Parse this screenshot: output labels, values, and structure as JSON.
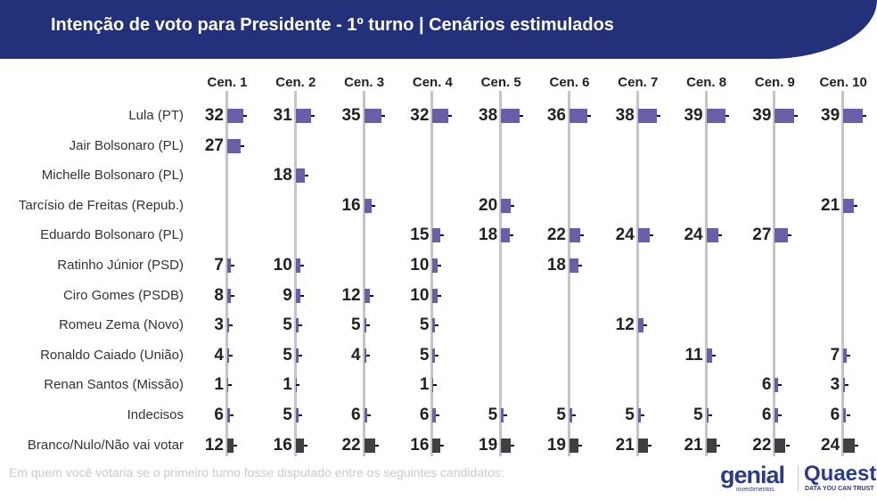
{
  "header": {
    "title": "Intenção de voto para Presidente - 1º turno | Cenários estimulados"
  },
  "footer": {
    "note": "Em quem você votaria se o primeiro turno fosse disputado entre os seguintes candidatos:"
  },
  "logos": {
    "genial": "genial",
    "genial_sub": "investimentos",
    "quaest": "Quaest",
    "quaest_sub": "DATA YOU CAN TRUST"
  },
  "colors": {
    "candidate": "#6b5ea8",
    "blank": "#3f3f44",
    "header": "#23307a"
  },
  "chart_data": {
    "type": "bar",
    "title": "Intenção de voto para Presidente - 1º turno | Cenários estimulados",
    "categories": [
      "Cen. 1",
      "Cen. 2",
      "Cen. 3",
      "Cen. 4",
      "Cen. 5",
      "Cen. 6",
      "Cen. 7",
      "Cen. 8",
      "Cen. 9",
      "Cen. 10"
    ],
    "series": [
      {
        "name": "Lula (PT)",
        "values": [
          32,
          31,
          35,
          32,
          38,
          36,
          38,
          39,
          39,
          39
        ]
      },
      {
        "name": "Jair Bolsonaro (PL)",
        "values": [
          27,
          null,
          null,
          null,
          null,
          null,
          null,
          null,
          null,
          null
        ]
      },
      {
        "name": "Michelle Bolsonaro (PL)",
        "values": [
          null,
          18,
          null,
          null,
          null,
          null,
          null,
          null,
          null,
          null
        ]
      },
      {
        "name": "Tarcísio de Freitas (Repub.)",
        "values": [
          null,
          null,
          16,
          null,
          20,
          null,
          null,
          null,
          null,
          21
        ]
      },
      {
        "name": "Eduardo Bolsonaro (PL)",
        "values": [
          null,
          null,
          null,
          15,
          18,
          22,
          24,
          24,
          27,
          null
        ]
      },
      {
        "name": "Ratinho Júnior (PSD)",
        "values": [
          7,
          10,
          null,
          10,
          null,
          18,
          null,
          null,
          null,
          null
        ]
      },
      {
        "name": "Ciro Gomes (PSDB)",
        "values": [
          8,
          9,
          12,
          10,
          null,
          null,
          null,
          null,
          null,
          null
        ]
      },
      {
        "name": "Romeu Zema (Novo)",
        "values": [
          3,
          5,
          5,
          5,
          null,
          null,
          12,
          null,
          null,
          null
        ]
      },
      {
        "name": "Ronaldo Caiado (União)",
        "values": [
          4,
          5,
          4,
          5,
          null,
          null,
          null,
          11,
          null,
          7
        ]
      },
      {
        "name": "Renan Santos (Missão)",
        "values": [
          1,
          1,
          null,
          1,
          null,
          null,
          null,
          null,
          6,
          3
        ]
      },
      {
        "name": "Indecisos",
        "values": [
          6,
          5,
          6,
          6,
          5,
          5,
          5,
          5,
          6,
          6
        ]
      },
      {
        "name": "Branco/Nulo/Não vai votar",
        "values": [
          12,
          16,
          22,
          16,
          19,
          19,
          21,
          21,
          22,
          24
        ]
      }
    ],
    "unit": "%"
  }
}
